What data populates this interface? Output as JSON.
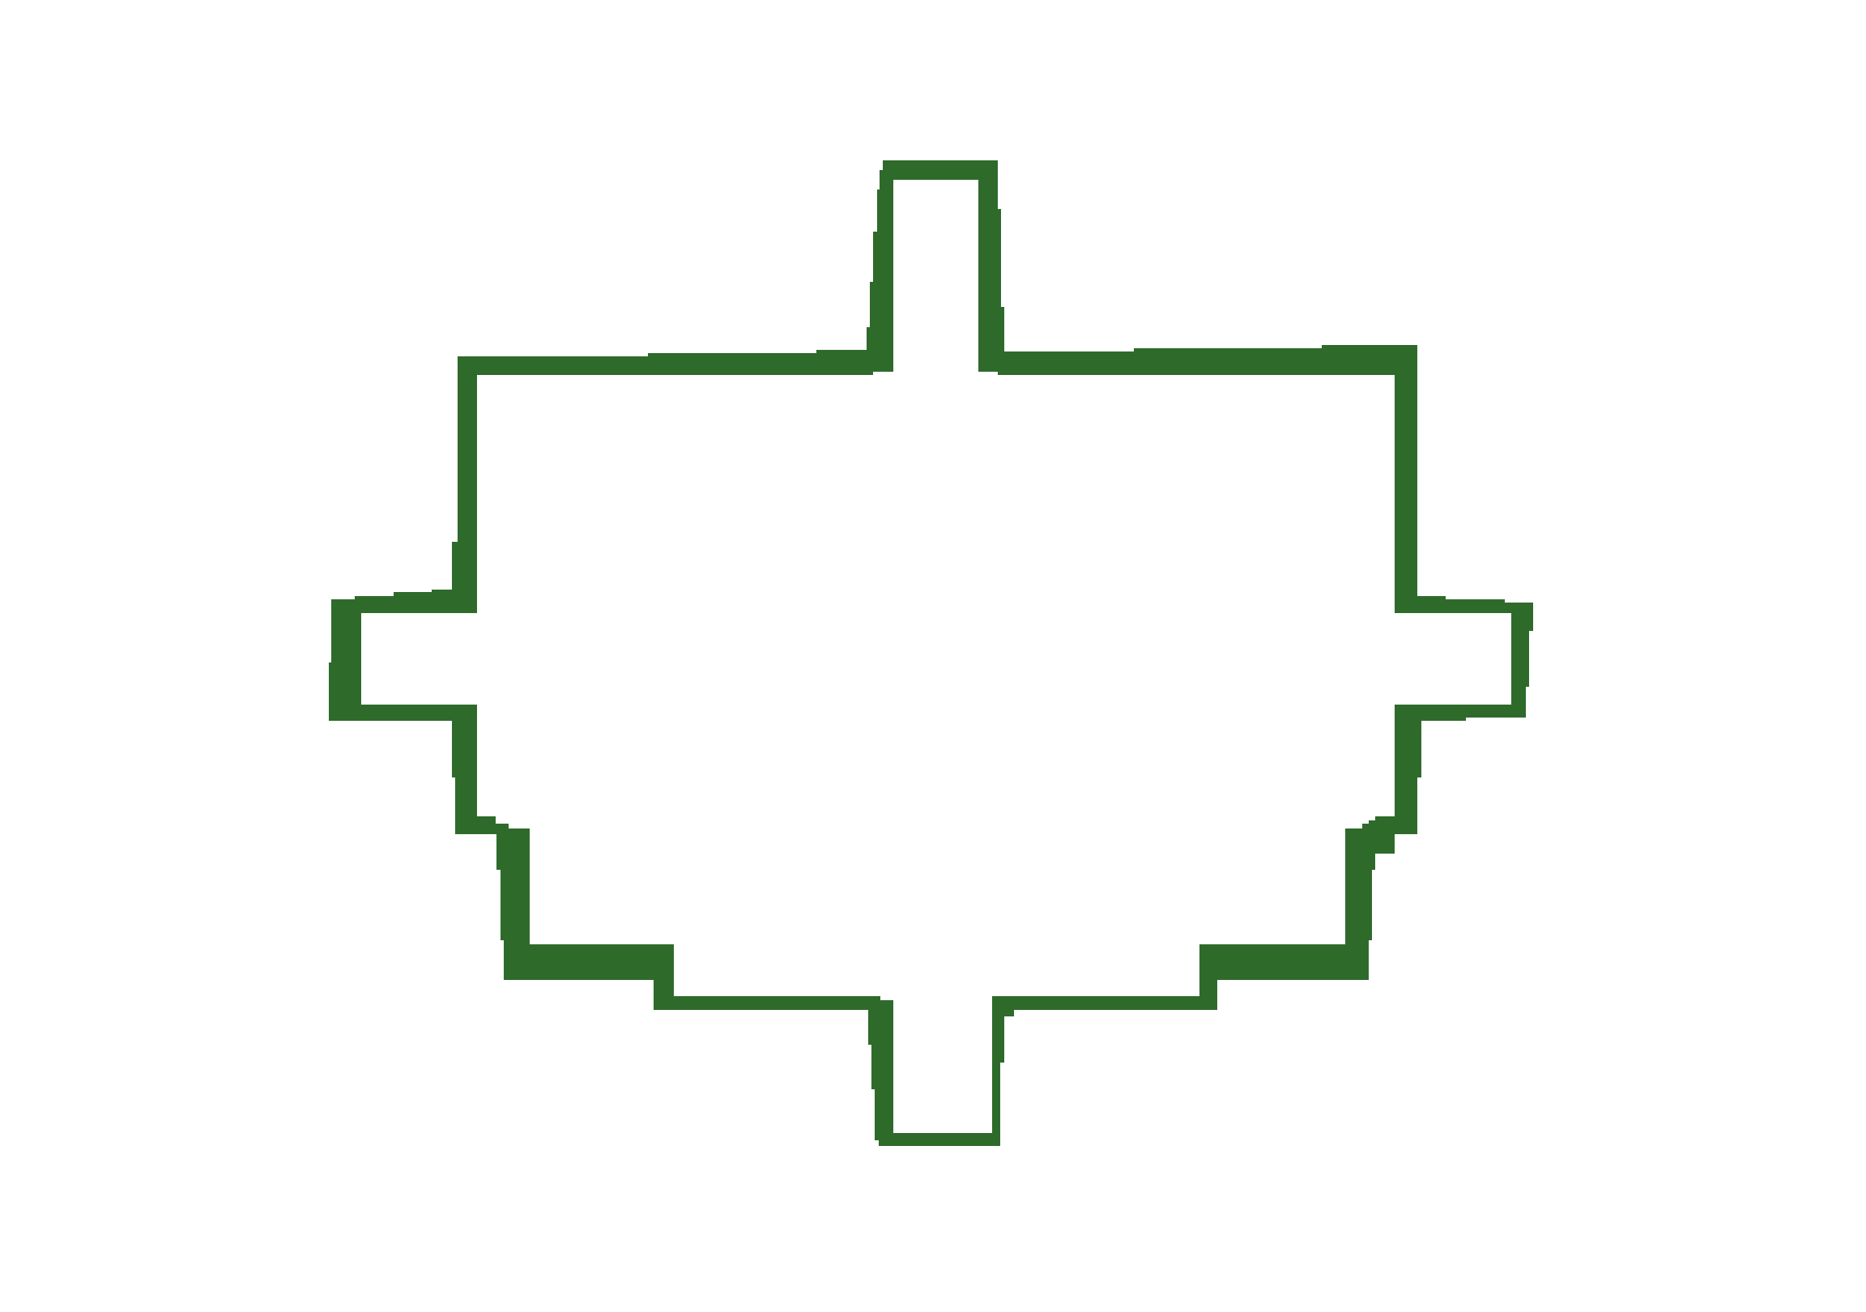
{
  "background_color": "#ffffff",
  "outline": {
    "shape": "stepped-cross-outline",
    "color": "#2e6b2b"
  }
}
